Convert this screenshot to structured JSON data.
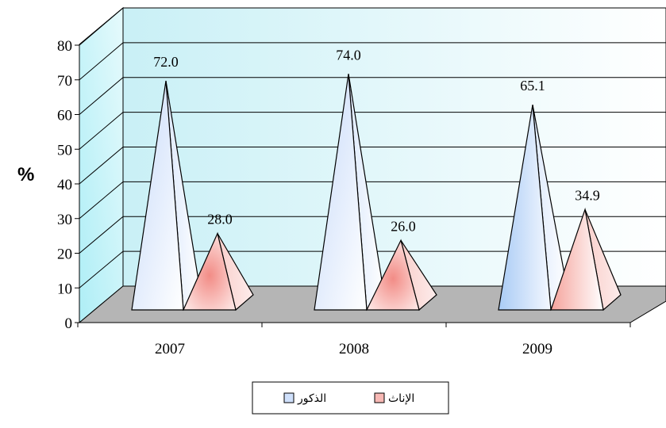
{
  "chart_data": {
    "type": "bar",
    "categories": [
      "2007",
      "2008",
      "2009"
    ],
    "series": [
      {
        "name": "الذكور",
        "values": [
          72.0,
          74.0,
          65.1
        ],
        "labels": [
          "72.0",
          "74.0",
          "65.1"
        ],
        "color": "#cfe0fb"
      },
      {
        "name": "الإناث",
        "values": [
          28.0,
          26.0,
          34.9
        ],
        "labels": [
          "28.0",
          "26.0",
          "34.9"
        ],
        "color": "#f7b8b4"
      }
    ],
    "ylabel": "%",
    "ylim": [
      0,
      80
    ],
    "yticks": [
      "0",
      "10",
      "20",
      "30",
      "40",
      "50",
      "60",
      "70",
      "80"
    ],
    "grid": true,
    "legend_position": "bottom"
  }
}
